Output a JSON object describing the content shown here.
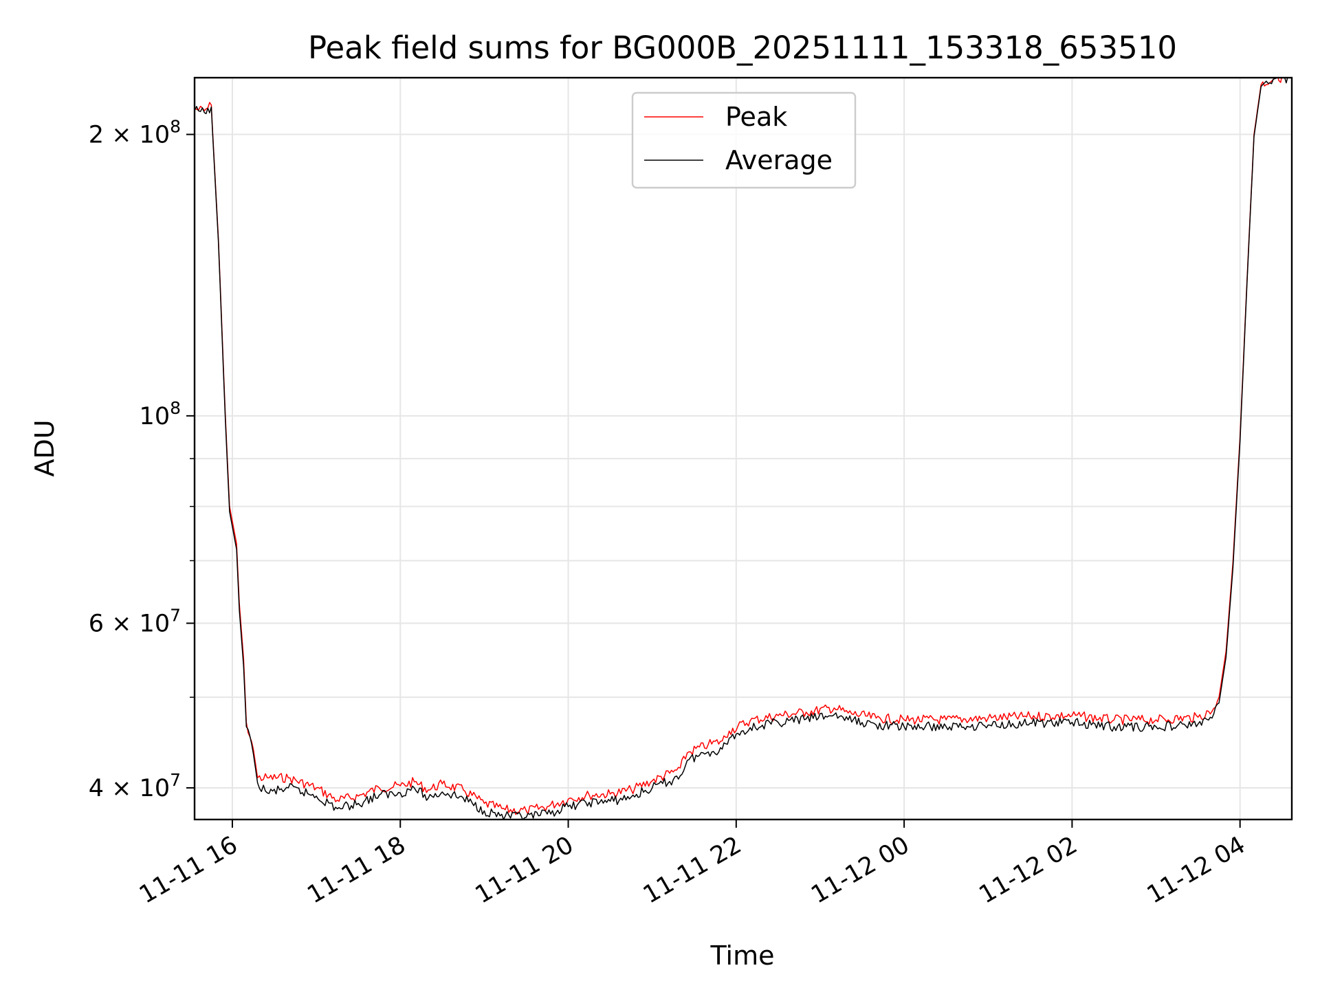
{
  "chart_data": {
    "type": "line",
    "title": "Peak field sums for BG000B_20251111_153318_653510",
    "xlabel": "Time",
    "ylabel": "ADU",
    "x_range": [
      "2025-11-11 15:33",
      "2025-11-12 04:37"
    ],
    "ylim": [
      37000000,
      230000000
    ],
    "yscale": "log",
    "grid": true,
    "legend_position": "upper center",
    "x_ticks": [
      {
        "t": "2025-11-11 16:00",
        "label": "11-11 16"
      },
      {
        "t": "2025-11-11 18:00",
        "label": "11-11 18"
      },
      {
        "t": "2025-11-11 20:00",
        "label": "11-11 20"
      },
      {
        "t": "2025-11-11 22:00",
        "label": "11-11 22"
      },
      {
        "t": "2025-11-12 00:00",
        "label": "11-12 00"
      },
      {
        "t": "2025-11-12 02:00",
        "label": "11-12 02"
      },
      {
        "t": "2025-11-12 04:00",
        "label": "11-12 04"
      }
    ],
    "y_ticks": [
      {
        "value": 40000000,
        "base": "4 × 10",
        "exp": "7"
      },
      {
        "value": 60000000,
        "base": "6 × 10",
        "exp": "7"
      },
      {
        "value": 100000000,
        "base": "10",
        "exp": "8"
      },
      {
        "value": 200000000,
        "base": "2 × 10",
        "exp": "8"
      }
    ],
    "y_minor_ticks": [
      50000000,
      70000000,
      80000000,
      90000000
    ],
    "series": [
      {
        "name": "Peak",
        "color": "#ff0000",
        "points": [
          [
            "2025-11-11 15:33",
            213000000
          ],
          [
            "2025-11-11 15:40",
            212000000
          ],
          [
            "2025-11-11 15:45",
            215000000
          ],
          [
            "2025-11-11 15:46",
            200000000
          ],
          [
            "2025-11-11 15:50",
            155000000
          ],
          [
            "2025-11-11 15:55",
            100000000
          ],
          [
            "2025-11-11 15:58",
            80000000
          ],
          [
            "2025-11-11 16:03",
            73000000
          ],
          [
            "2025-11-11 16:05",
            63000000
          ],
          [
            "2025-11-11 16:08",
            55000000
          ],
          [
            "2025-11-11 16:10",
            47000000
          ],
          [
            "2025-11-11 16:15",
            44000000
          ],
          [
            "2025-11-11 16:18",
            41000000
          ],
          [
            "2025-11-11 16:25",
            41000000
          ],
          [
            "2025-11-11 16:40",
            41000000
          ],
          [
            "2025-11-11 17:00",
            40000000
          ],
          [
            "2025-11-11 17:15",
            38800000
          ],
          [
            "2025-11-11 17:30",
            39200000
          ],
          [
            "2025-11-11 17:45",
            40000000
          ],
          [
            "2025-11-11 18:00",
            40200000
          ],
          [
            "2025-11-11 18:10",
            40600000
          ],
          [
            "2025-11-11 18:20",
            39800000
          ],
          [
            "2025-11-11 18:30",
            40400000
          ],
          [
            "2025-11-11 18:45",
            39800000
          ],
          [
            "2025-11-11 19:00",
            38500000
          ],
          [
            "2025-11-11 19:15",
            37900000
          ],
          [
            "2025-11-11 19:30",
            37800000
          ],
          [
            "2025-11-11 19:45",
            38200000
          ],
          [
            "2025-11-11 20:00",
            38900000
          ],
          [
            "2025-11-11 20:15",
            39300000
          ],
          [
            "2025-11-11 20:30",
            39400000
          ],
          [
            "2025-11-11 20:45",
            39800000
          ],
          [
            "2025-11-11 21:00",
            40700000
          ],
          [
            "2025-11-11 21:15",
            41600000
          ],
          [
            "2025-11-11 21:20",
            42000000
          ],
          [
            "2025-11-11 21:25",
            43600000
          ],
          [
            "2025-11-11 21:40",
            44500000
          ],
          [
            "2025-11-11 21:50",
            44900000
          ],
          [
            "2025-11-11 21:55",
            46000000
          ],
          [
            "2025-11-11 22:10",
            47200000
          ],
          [
            "2025-11-11 22:30",
            47800000
          ],
          [
            "2025-11-11 22:50",
            48200000
          ],
          [
            "2025-11-11 23:10",
            48700000
          ],
          [
            "2025-11-11 23:20",
            48100000
          ],
          [
            "2025-11-11 23:40",
            47500000
          ],
          [
            "2025-11-12 00:00",
            47300000
          ],
          [
            "2025-11-12 00:30",
            47300000
          ],
          [
            "2025-11-12 01:00",
            47500000
          ],
          [
            "2025-11-12 01:30",
            47700000
          ],
          [
            "2025-11-12 02:00",
            47800000
          ],
          [
            "2025-11-12 02:30",
            47300000
          ],
          [
            "2025-11-12 03:00",
            47300000
          ],
          [
            "2025-11-12 03:30",
            47600000
          ],
          [
            "2025-11-12 03:40",
            48300000
          ],
          [
            "2025-11-12 03:45",
            50000000
          ],
          [
            "2025-11-12 03:50",
            56000000
          ],
          [
            "2025-11-12 03:55",
            70000000
          ],
          [
            "2025-11-12 04:00",
            95000000
          ],
          [
            "2025-11-12 04:05",
            140000000
          ],
          [
            "2025-11-12 04:10",
            200000000
          ],
          [
            "2025-11-12 04:15",
            226000000
          ],
          [
            "2025-11-12 04:25",
            230000000
          ],
          [
            "2025-11-12 04:37",
            230000000
          ]
        ]
      },
      {
        "name": "Average",
        "color": "#000000",
        "points": [
          [
            "2025-11-11 15:33",
            212000000
          ],
          [
            "2025-11-11 15:40",
            211000000
          ],
          [
            "2025-11-11 15:45",
            214000000
          ],
          [
            "2025-11-11 15:46",
            199000000
          ],
          [
            "2025-11-11 15:50",
            154000000
          ],
          [
            "2025-11-11 15:55",
            99000000
          ],
          [
            "2025-11-11 15:58",
            79000000
          ],
          [
            "2025-11-11 16:03",
            72000000
          ],
          [
            "2025-11-11 16:05",
            62000000
          ],
          [
            "2025-11-11 16:08",
            54000000
          ],
          [
            "2025-11-11 16:10",
            46500000
          ],
          [
            "2025-11-11 16:15",
            43500000
          ],
          [
            "2025-11-11 16:18",
            40500000
          ],
          [
            "2025-11-11 16:25",
            39500000
          ],
          [
            "2025-11-11 16:40",
            40000000
          ],
          [
            "2025-11-11 17:00",
            39200000
          ],
          [
            "2025-11-11 17:15",
            38000000
          ],
          [
            "2025-11-11 17:30",
            38500000
          ],
          [
            "2025-11-11 17:45",
            39300000
          ],
          [
            "2025-11-11 18:00",
            39500000
          ],
          [
            "2025-11-11 18:10",
            40000000
          ],
          [
            "2025-11-11 18:20",
            39000000
          ],
          [
            "2025-11-11 18:30",
            39600000
          ],
          [
            "2025-11-11 18:45",
            39000000
          ],
          [
            "2025-11-11 19:00",
            37800000
          ],
          [
            "2025-11-11 19:15",
            37300000
          ],
          [
            "2025-11-11 19:30",
            37200000
          ],
          [
            "2025-11-11 19:45",
            37500000
          ],
          [
            "2025-11-11 20:00",
            38200000
          ],
          [
            "2025-11-11 20:15",
            38600000
          ],
          [
            "2025-11-11 20:30",
            38700000
          ],
          [
            "2025-11-11 20:45",
            39100000
          ],
          [
            "2025-11-11 21:00",
            40000000
          ],
          [
            "2025-11-11 21:15",
            40800000
          ],
          [
            "2025-11-11 21:20",
            41200000
          ],
          [
            "2025-11-11 21:25",
            42800000
          ],
          [
            "2025-11-11 21:40",
            43700000
          ],
          [
            "2025-11-11 21:50",
            44000000
          ],
          [
            "2025-11-11 21:55",
            45200000
          ],
          [
            "2025-11-11 22:10",
            46400000
          ],
          [
            "2025-11-11 22:30",
            47000000
          ],
          [
            "2025-11-11 22:50",
            47400000
          ],
          [
            "2025-11-11 23:10",
            47900000
          ],
          [
            "2025-11-11 23:20",
            47300000
          ],
          [
            "2025-11-11 23:40",
            46700000
          ],
          [
            "2025-11-12 00:00",
            46500000
          ],
          [
            "2025-11-12 00:30",
            46500000
          ],
          [
            "2025-11-12 01:00",
            46700000
          ],
          [
            "2025-11-12 01:30",
            46900000
          ],
          [
            "2025-11-12 02:00",
            47000000
          ],
          [
            "2025-11-12 02:30",
            46500000
          ],
          [
            "2025-11-12 03:00",
            46500000
          ],
          [
            "2025-11-12 03:30",
            46800000
          ],
          [
            "2025-11-12 03:40",
            47500000
          ],
          [
            "2025-11-12 03:45",
            49300000
          ],
          [
            "2025-11-12 03:50",
            55200000
          ],
          [
            "2025-11-12 03:55",
            69000000
          ],
          [
            "2025-11-12 04:00",
            94000000
          ],
          [
            "2025-11-12 04:05",
            139000000
          ],
          [
            "2025-11-12 04:10",
            199000000
          ],
          [
            "2025-11-12 04:15",
            225000000
          ],
          [
            "2025-11-12 04:25",
            229500000
          ],
          [
            "2025-11-12 04:37",
            229800000
          ]
        ]
      }
    ]
  }
}
